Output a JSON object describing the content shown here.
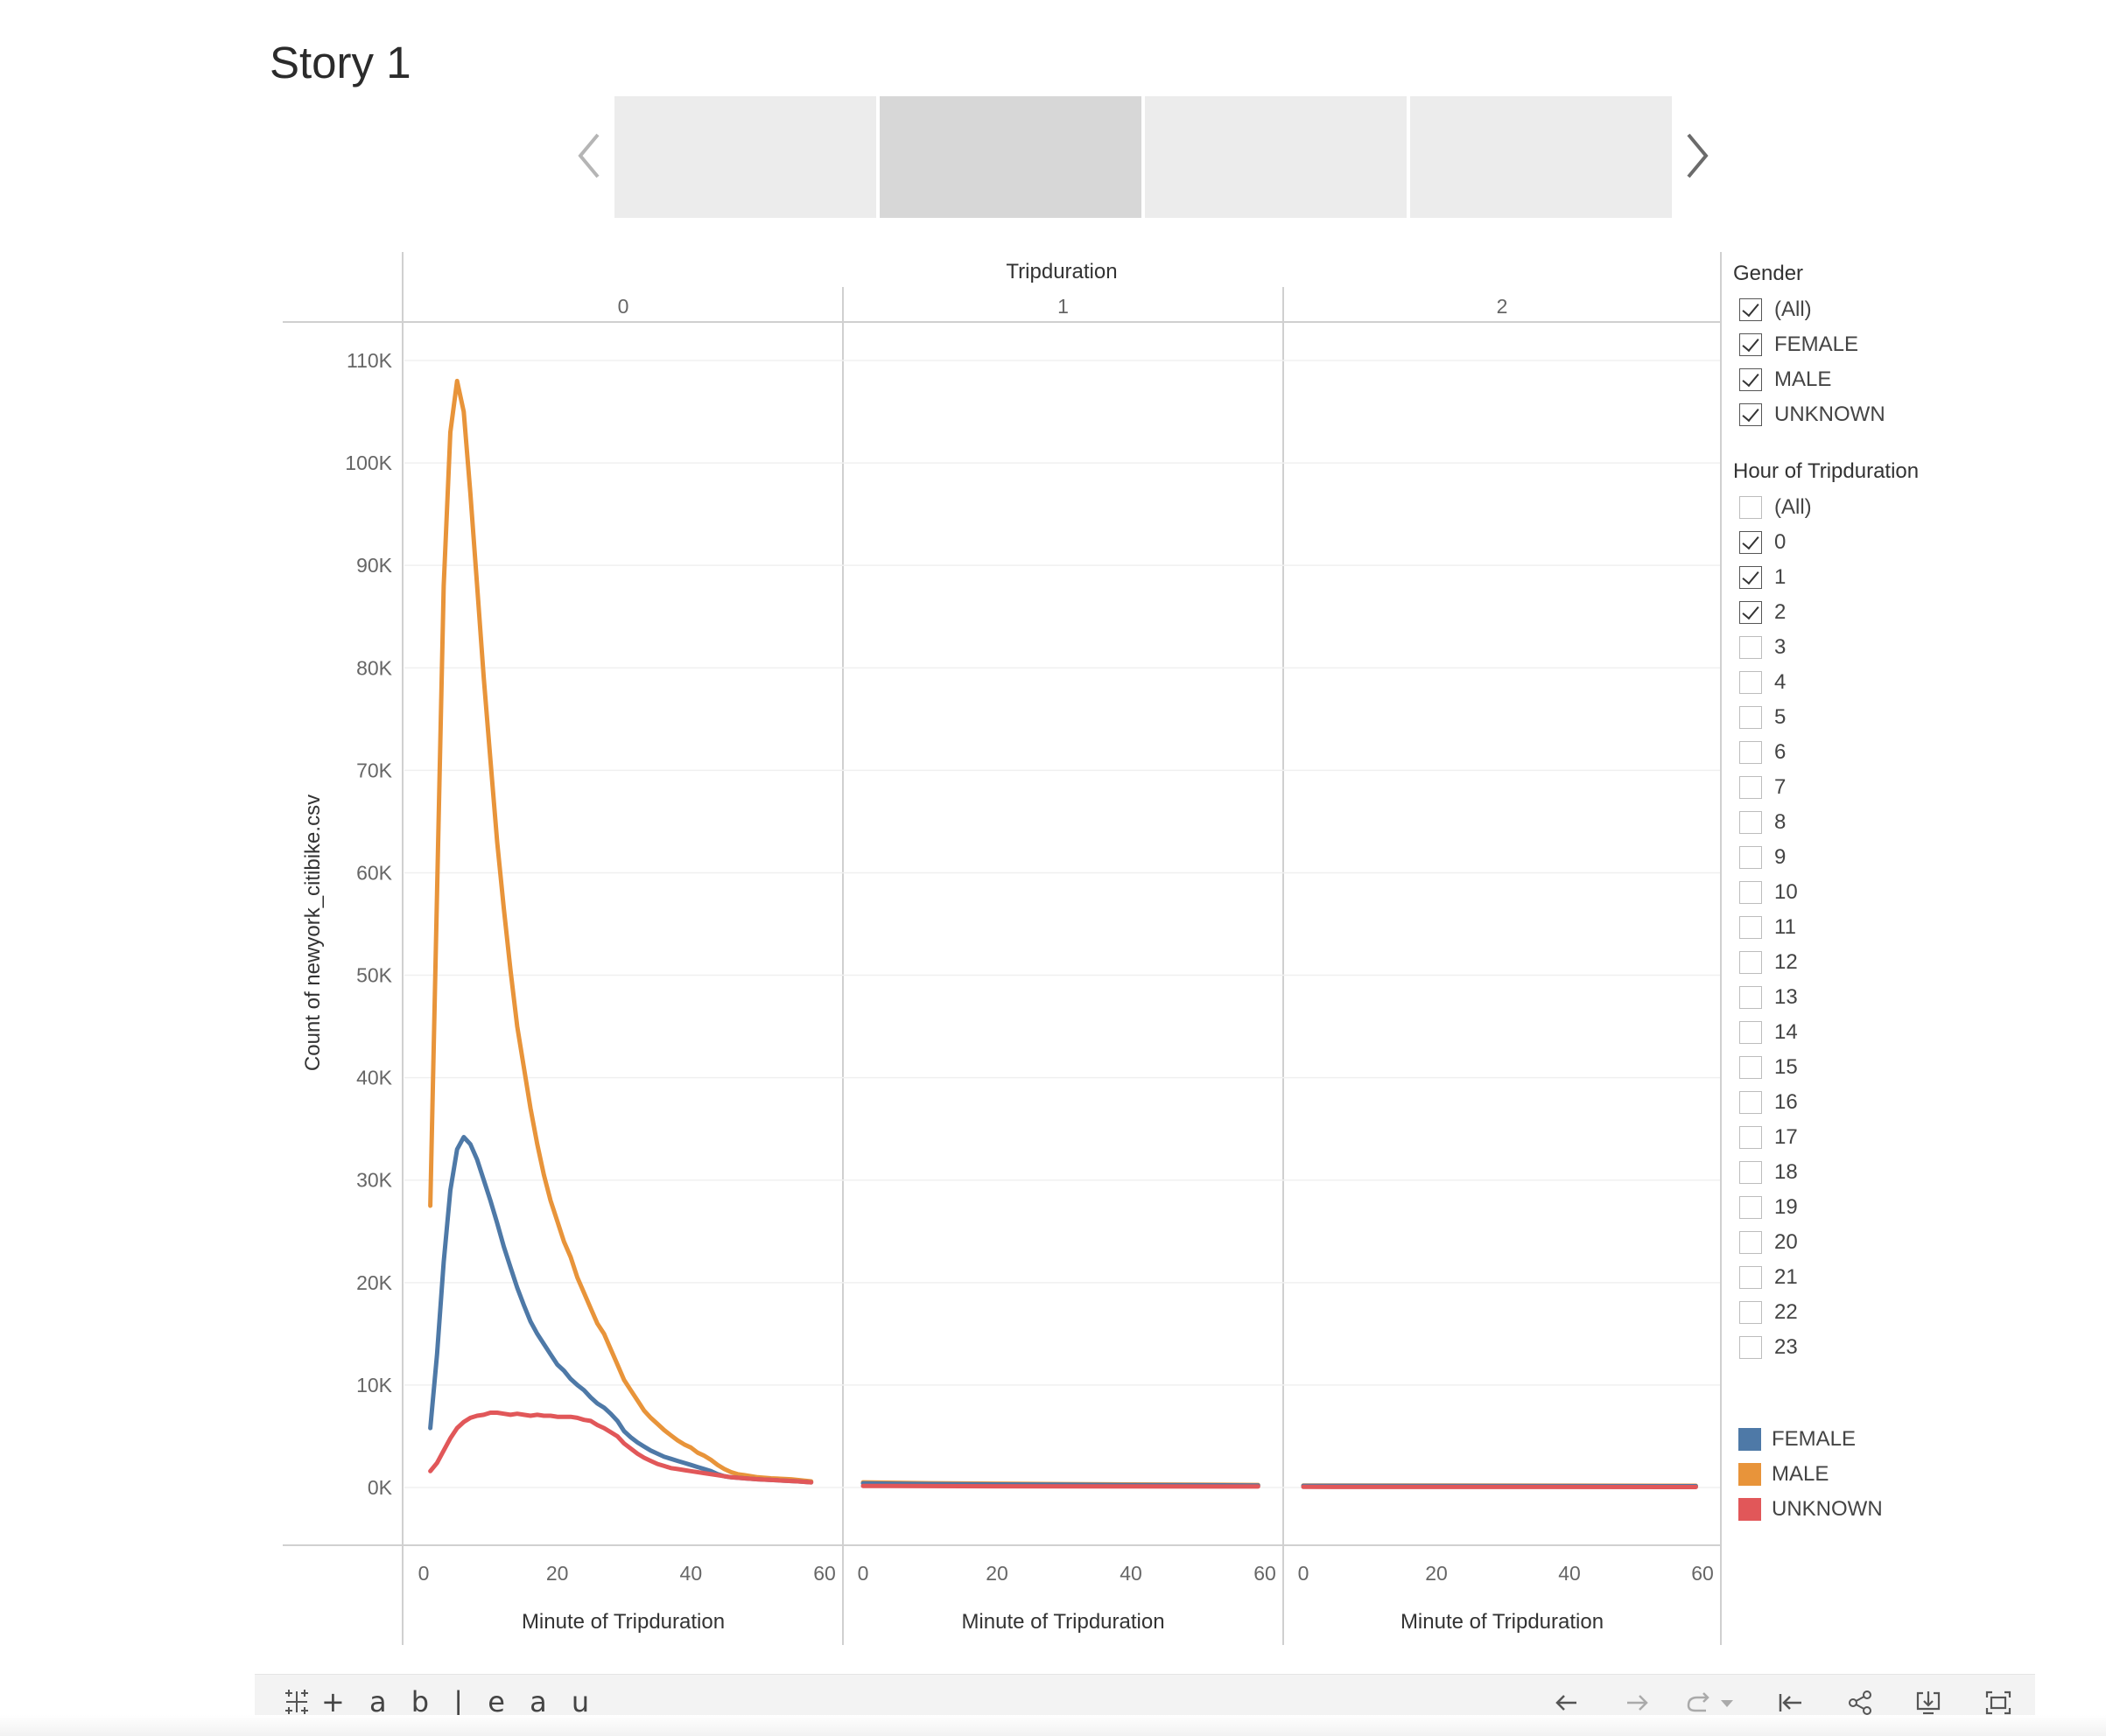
{
  "story": {
    "title": "Story 1",
    "points": [
      "",
      "",
      "",
      ""
    ],
    "active_point": 1
  },
  "header": {
    "title": "Tripduration",
    "panels": [
      "0",
      "1",
      "2"
    ]
  },
  "chart_data": {
    "type": "line",
    "title": "",
    "ylabel": "Count of newyork_citibike.csv",
    "xlabel": "Minute of Tripduration",
    "facet_label": "Tripduration",
    "facets": [
      "0",
      "1",
      "2"
    ],
    "ylim": [
      0,
      110000
    ],
    "xlim": [
      0,
      60
    ],
    "y_ticks": [
      "0K",
      "10K",
      "20K",
      "30K",
      "40K",
      "50K",
      "60K",
      "70K",
      "80K",
      "90K",
      "100K",
      "110K"
    ],
    "x_ticks": [
      "0",
      "20",
      "40",
      "60"
    ],
    "grid": true,
    "legend_position": "right",
    "panels": [
      {
        "facet": "0",
        "series": [
          {
            "name": "MALE",
            "color": "#e8943a",
            "points": [
              [
                1,
                27500
              ],
              [
                2,
                58000
              ],
              [
                3,
                88000
              ],
              [
                4,
                103000
              ],
              [
                5,
                108000
              ],
              [
                6,
                105000
              ],
              [
                7,
                97000
              ],
              [
                8,
                88000
              ],
              [
                9,
                79000
              ],
              [
                10,
                71000
              ],
              [
                11,
                63000
              ],
              [
                12,
                56500
              ],
              [
                13,
                50500
              ],
              [
                14,
                45000
              ],
              [
                15,
                41000
              ],
              [
                16,
                37000
              ],
              [
                17,
                33500
              ],
              [
                18,
                30500
              ],
              [
                19,
                28000
              ],
              [
                20,
                26000
              ],
              [
                21,
                24000
              ],
              [
                22,
                22500
              ],
              [
                23,
                20500
              ],
              [
                24,
                19000
              ],
              [
                25,
                17500
              ],
              [
                26,
                16000
              ],
              [
                27,
                15000
              ],
              [
                28,
                13500
              ],
              [
                29,
                12000
              ],
              [
                30,
                10500
              ],
              [
                31,
                9500
              ],
              [
                32,
                8500
              ],
              [
                33,
                7500
              ],
              [
                34,
                6800
              ],
              [
                35,
                6200
              ],
              [
                36,
                5600
              ],
              [
                37,
                5100
              ],
              [
                38,
                4600
              ],
              [
                39,
                4200
              ],
              [
                40,
                3900
              ],
              [
                41,
                3400
              ],
              [
                42,
                3100
              ],
              [
                43,
                2700
              ],
              [
                44,
                2200
              ],
              [
                45,
                1800
              ],
              [
                46,
                1500
              ],
              [
                47,
                1300
              ],
              [
                48,
                1200
              ],
              [
                49,
                1100
              ],
              [
                50,
                1000
              ],
              [
                52,
                900
              ],
              [
                55,
                800
              ],
              [
                58,
                600
              ]
            ]
          },
          {
            "name": "FEMALE",
            "color": "#4e79a7",
            "points": [
              [
                1,
                5800
              ],
              [
                2,
                13000
              ],
              [
                3,
                22000
              ],
              [
                4,
                29000
              ],
              [
                5,
                33000
              ],
              [
                6,
                34200
              ],
              [
                7,
                33500
              ],
              [
                8,
                32000
              ],
              [
                9,
                30000
              ],
              [
                10,
                28000
              ],
              [
                11,
                25800
              ],
              [
                12,
                23500
              ],
              [
                13,
                21500
              ],
              [
                14,
                19500
              ],
              [
                15,
                17800
              ],
              [
                16,
                16200
              ],
              [
                17,
                15000
              ],
              [
                18,
                14000
              ],
              [
                19,
                13000
              ],
              [
                20,
                12000
              ],
              [
                21,
                11400
              ],
              [
                22,
                10600
              ],
              [
                23,
                10000
              ],
              [
                24,
                9500
              ],
              [
                25,
                8800
              ],
              [
                26,
                8200
              ],
              [
                27,
                7800
              ],
              [
                28,
                7200
              ],
              [
                29,
                6500
              ],
              [
                30,
                5500
              ],
              [
                31,
                4900
              ],
              [
                32,
                4400
              ],
              [
                33,
                4000
              ],
              [
                34,
                3600
              ],
              [
                35,
                3300
              ],
              [
                36,
                3000
              ],
              [
                37,
                2800
              ],
              [
                38,
                2600
              ],
              [
                39,
                2400
              ],
              [
                40,
                2200
              ],
              [
                41,
                2000
              ],
              [
                42,
                1800
              ],
              [
                43,
                1600
              ],
              [
                44,
                1300
              ],
              [
                45,
                1100
              ],
              [
                46,
                1000
              ],
              [
                48,
                900
              ],
              [
                50,
                800
              ],
              [
                53,
                700
              ],
              [
                56,
                600
              ],
              [
                58,
                500
              ]
            ]
          },
          {
            "name": "UNKNOWN",
            "color": "#e15759",
            "points": [
              [
                1,
                1600
              ],
              [
                2,
                2400
              ],
              [
                3,
                3600
              ],
              [
                4,
                4800
              ],
              [
                5,
                5800
              ],
              [
                6,
                6400
              ],
              [
                7,
                6800
              ],
              [
                8,
                7000
              ],
              [
                9,
                7100
              ],
              [
                10,
                7300
              ],
              [
                11,
                7300
              ],
              [
                12,
                7200
              ],
              [
                13,
                7100
              ],
              [
                14,
                7200
              ],
              [
                15,
                7100
              ],
              [
                16,
                7000
              ],
              [
                17,
                7100
              ],
              [
                18,
                7000
              ],
              [
                19,
                7000
              ],
              [
                20,
                6900
              ],
              [
                21,
                6900
              ],
              [
                22,
                6900
              ],
              [
                23,
                6800
              ],
              [
                24,
                6600
              ],
              [
                25,
                6500
              ],
              [
                26,
                6100
              ],
              [
                27,
                5800
              ],
              [
                28,
                5400
              ],
              [
                29,
                5000
              ],
              [
                30,
                4300
              ],
              [
                31,
                3800
              ],
              [
                32,
                3300
              ],
              [
                33,
                2900
              ],
              [
                34,
                2600
              ],
              [
                35,
                2300
              ],
              [
                36,
                2100
              ],
              [
                37,
                1900
              ],
              [
                38,
                1800
              ],
              [
                39,
                1700
              ],
              [
                40,
                1600
              ],
              [
                42,
                1400
              ],
              [
                44,
                1200
              ],
              [
                46,
                1000
              ],
              [
                48,
                900
              ],
              [
                50,
                800
              ],
              [
                53,
                700
              ],
              [
                56,
                600
              ],
              [
                58,
                500
              ]
            ]
          }
        ]
      },
      {
        "facet": "1",
        "series": [
          {
            "name": "MALE",
            "color": "#e8943a",
            "points": [
              [
                0,
                500
              ],
              [
                10,
                420
              ],
              [
                20,
                380
              ],
              [
                30,
                330
              ],
              [
                40,
                300
              ],
              [
                50,
                270
              ],
              [
                59,
                250
              ]
            ]
          },
          {
            "name": "FEMALE",
            "color": "#4e79a7",
            "points": [
              [
                0,
                400
              ],
              [
                10,
                340
              ],
              [
                20,
                300
              ],
              [
                30,
                270
              ],
              [
                40,
                240
              ],
              [
                50,
                220
              ],
              [
                59,
                200
              ]
            ]
          },
          {
            "name": "UNKNOWN",
            "color": "#e15759",
            "points": [
              [
                0,
                150
              ],
              [
                20,
                120
              ],
              [
                40,
                100
              ],
              [
                59,
                90
              ]
            ]
          }
        ]
      },
      {
        "facet": "2",
        "series": [
          {
            "name": "MALE",
            "color": "#e8943a",
            "points": [
              [
                0,
                200
              ],
              [
                20,
                190
              ],
              [
                40,
                180
              ],
              [
                59,
                170
              ]
            ]
          },
          {
            "name": "FEMALE",
            "color": "#4e79a7",
            "points": [
              [
                0,
                160
              ],
              [
                20,
                150
              ],
              [
                40,
                140
              ],
              [
                59,
                130
              ]
            ]
          },
          {
            "name": "UNKNOWN",
            "color": "#e15759",
            "points": [
              [
                0,
                60
              ],
              [
                30,
                50
              ],
              [
                59,
                45
              ]
            ]
          }
        ]
      }
    ]
  },
  "filters": {
    "gender": {
      "title": "Gender",
      "items": [
        {
          "label": "(All)",
          "checked": true
        },
        {
          "label": "FEMALE",
          "checked": true
        },
        {
          "label": "MALE",
          "checked": true
        },
        {
          "label": "UNKNOWN",
          "checked": true
        }
      ]
    },
    "hour": {
      "title": "Hour of Tripduration",
      "items": [
        {
          "label": "(All)",
          "checked": false
        },
        {
          "label": "0",
          "checked": true
        },
        {
          "label": "1",
          "checked": true
        },
        {
          "label": "2",
          "checked": true
        },
        {
          "label": "3",
          "checked": false
        },
        {
          "label": "4",
          "checked": false
        },
        {
          "label": "5",
          "checked": false
        },
        {
          "label": "6",
          "checked": false
        },
        {
          "label": "7",
          "checked": false
        },
        {
          "label": "8",
          "checked": false
        },
        {
          "label": "9",
          "checked": false
        },
        {
          "label": "10",
          "checked": false
        },
        {
          "label": "11",
          "checked": false
        },
        {
          "label": "12",
          "checked": false
        },
        {
          "label": "13",
          "checked": false
        },
        {
          "label": "14",
          "checked": false
        },
        {
          "label": "15",
          "checked": false
        },
        {
          "label": "16",
          "checked": false
        },
        {
          "label": "17",
          "checked": false
        },
        {
          "label": "18",
          "checked": false
        },
        {
          "label": "19",
          "checked": false
        },
        {
          "label": "20",
          "checked": false
        },
        {
          "label": "21",
          "checked": false
        },
        {
          "label": "22",
          "checked": false
        },
        {
          "label": "23",
          "checked": false
        }
      ]
    }
  },
  "legend": {
    "items": [
      {
        "label": "FEMALE",
        "color": "#4e79a7"
      },
      {
        "label": "MALE",
        "color": "#e8943a"
      },
      {
        "label": "UNKNOWN",
        "color": "#e15759"
      }
    ]
  },
  "toolbar": {
    "brand": "+ a b | e a u",
    "buttons": [
      "undo-icon",
      "redo-icon",
      "revert-icon",
      "dropdown-icon",
      "reset-icon",
      "share-icon",
      "download-icon",
      "fullscreen-icon"
    ]
  }
}
